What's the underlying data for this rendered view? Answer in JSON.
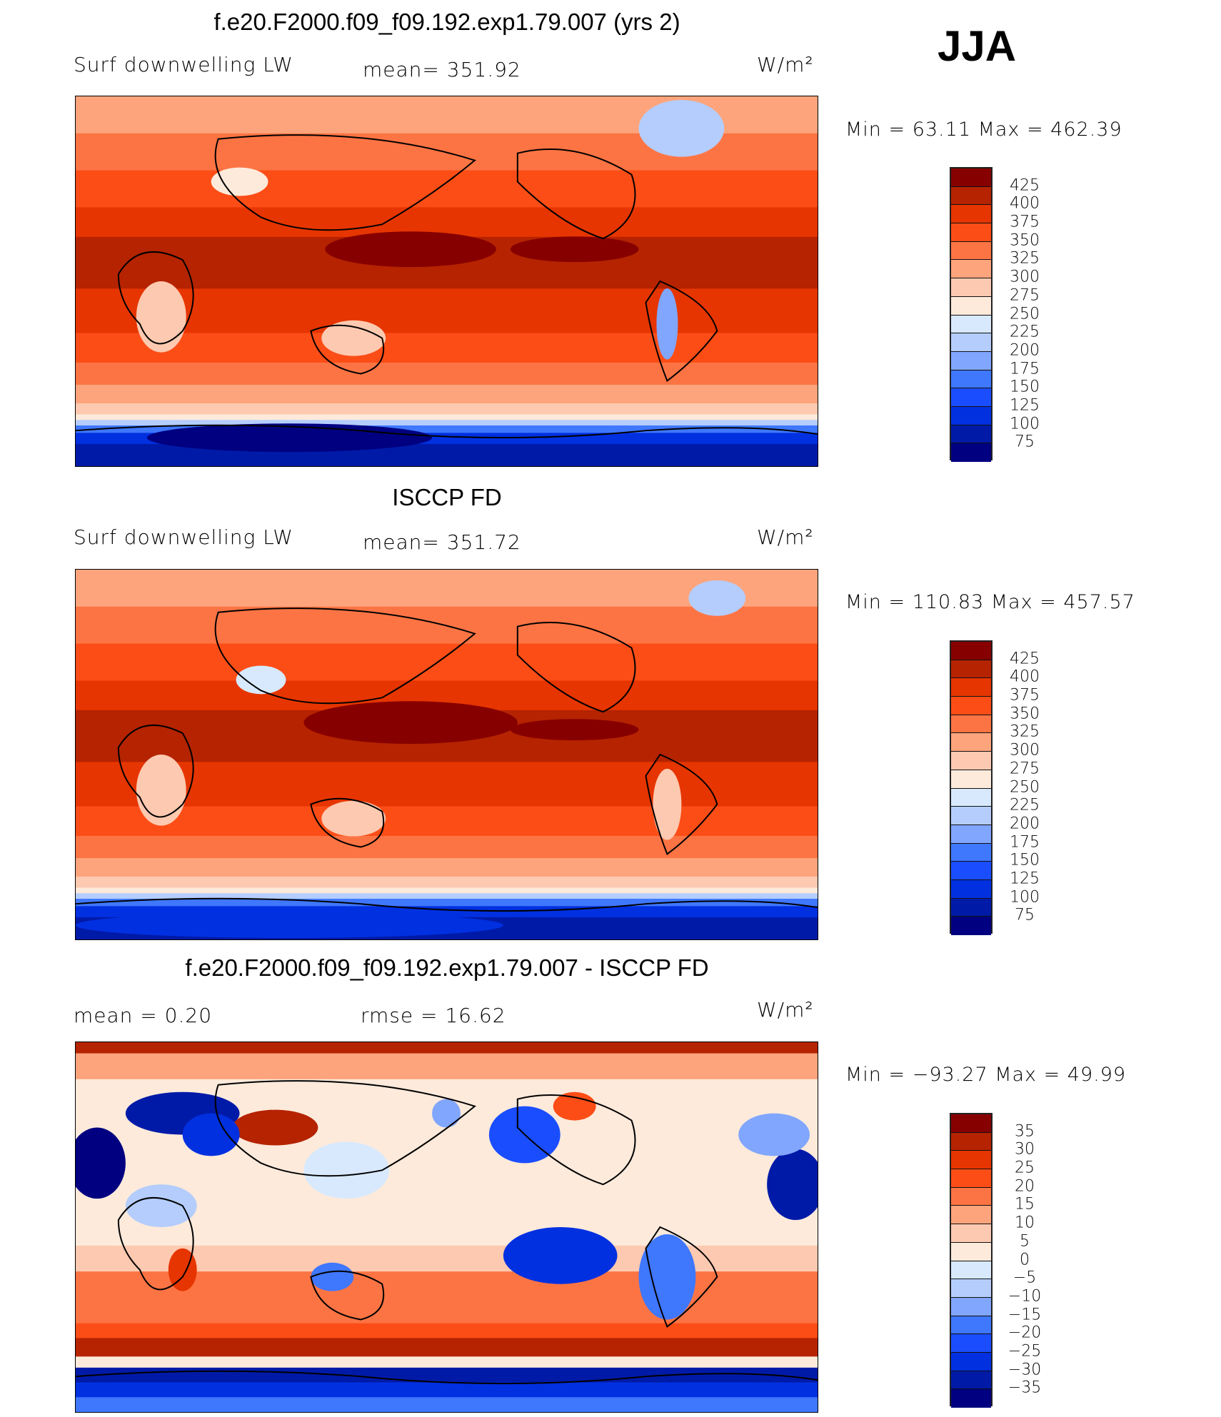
{
  "season": "JJA",
  "units": "W/m²",
  "colors": [
    "#870000",
    "#b52300",
    "#e63500",
    "#fc4d17",
    "#fd7444",
    "#fda47c",
    "#fdc9b0",
    "#fdeadb",
    "#d8e9fd",
    "#b4cdfd",
    "#81a6fd",
    "#3f77fd",
    "#1a4dfd",
    "#0030e0",
    "#001aa8",
    "#000080"
  ],
  "chart_data": [
    {
      "type": "heatmap",
      "title": "f.e20.F2000.f09_f09.192.exp1.79.007 (yrs 2)",
      "variable": "Surf downwelling LW",
      "stat_label": "mean= 351.92",
      "units": "W/m²",
      "minmax": "Min =   63.11  Max =  462.39",
      "min": 63.11,
      "max": 462.39,
      "mean": 351.92,
      "levels": [
        "425",
        "400",
        "375",
        "350",
        "325",
        "300",
        "275",
        "250",
        "225",
        "200",
        "175",
        "150",
        "125",
        "100",
        "75"
      ]
    },
    {
      "type": "heatmap",
      "title": "ISCCP FD",
      "variable": "Surf downwelling LW",
      "stat_label": "mean= 351.72",
      "units": "W/m²",
      "minmax": "Min = 110.83  Max =  457.57",
      "min": 110.83,
      "max": 457.57,
      "mean": 351.72,
      "levels": [
        "425",
        "400",
        "375",
        "350",
        "325",
        "300",
        "275",
        "250",
        "225",
        "200",
        "175",
        "150",
        "125",
        "100",
        "75"
      ]
    },
    {
      "type": "heatmap",
      "title": "f.e20.F2000.f09_f09.192.exp1.79.007 - ISCCP FD",
      "stat_label": "mean =     0.20",
      "stat_label2": "rmse =    16.62",
      "units": "W/m²",
      "minmax": "Min = −93.27  Max =    49.99",
      "min": -93.27,
      "max": 49.99,
      "mean": 0.2,
      "rmse": 16.62,
      "levels": [
        "35",
        "30",
        "25",
        "20",
        "15",
        "10",
        "5",
        "0",
        "−5",
        "−10",
        "−15",
        "−20",
        "−25",
        "−30",
        "−35"
      ]
    }
  ]
}
